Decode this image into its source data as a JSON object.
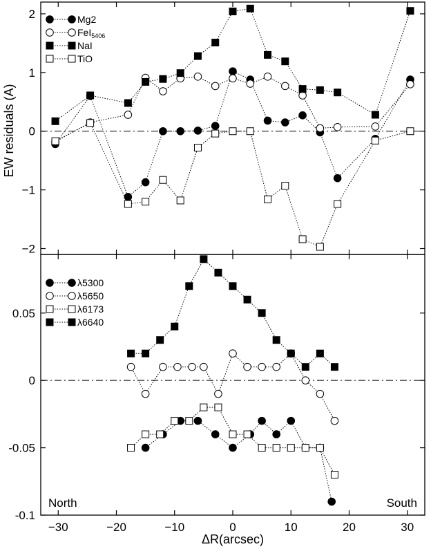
{
  "chart_data": [
    {
      "type": "line",
      "panel": "top",
      "ylabel": "EW residuals (A)",
      "xlim": [
        -33,
        33
      ],
      "ylim": [
        -2.1,
        2.2
      ],
      "yticks": [
        -2,
        -1,
        0,
        1,
        2
      ],
      "ytick_labels": [
        "−2",
        "−1",
        "0",
        "1",
        "2"
      ],
      "xticks": [
        -30,
        -20,
        -10,
        0,
        10,
        20,
        30
      ],
      "reference_line_y": 0,
      "legend_position": "top-left",
      "series": [
        {
          "name": "Mg2",
          "marker": "filled-circle",
          "x": [
            -30.5,
            -24.5,
            -18,
            -15,
            -12,
            -9,
            -6,
            -3,
            0,
            3,
            6,
            9,
            12,
            15,
            18,
            24.5,
            30.5
          ],
          "y": [
            -0.22,
            0.6,
            -1.12,
            -0.87,
            0,
            0,
            0.01,
            0.09,
            1.02,
            0.88,
            0.18,
            0.15,
            0.27,
            -0.02,
            -0.8,
            -0.13,
            0.88
          ]
        },
        {
          "name": "FeI",
          "name_subscript": "5406",
          "marker": "open-circle",
          "x": [
            -30.5,
            -24.5,
            -18,
            -15,
            -12,
            -9,
            -6,
            -3,
            0,
            3,
            6,
            9,
            12,
            15,
            18,
            24.5,
            30.5
          ],
          "y": [
            -0.18,
            0.15,
            0.28,
            0.91,
            0.68,
            0.9,
            0.93,
            0.77,
            0.9,
            0.81,
            0.93,
            0.77,
            0.61,
            0.05,
            0.07,
            0.08,
            0.8
          ]
        },
        {
          "name": "NaI",
          "marker": "filled-square",
          "x": [
            -30.5,
            -24.5,
            -18,
            -15,
            -12,
            -9,
            -6,
            -3,
            0,
            3,
            6,
            9,
            12,
            15,
            18,
            24.5,
            30.5
          ],
          "y": [
            0.17,
            0.61,
            0.48,
            0.84,
            0.89,
            0.99,
            1.28,
            1.51,
            2.04,
            2.09,
            1.3,
            1.19,
            0.72,
            0.7,
            0.66,
            0.28,
            2.05
          ]
        },
        {
          "name": "TiO",
          "marker": "open-square",
          "x": [
            -30.5,
            -24.5,
            -18,
            -15,
            -12,
            -9,
            -6,
            -3,
            0,
            3,
            6,
            9,
            12,
            15,
            18,
            24.5,
            30.5
          ],
          "y": [
            -0.17,
            0.14,
            -1.24,
            -1.2,
            -0.83,
            -1.18,
            -0.28,
            -0.04,
            0,
            0,
            -1.16,
            -0.93,
            -1.84,
            -1.97,
            -1.24,
            -0.16,
            0
          ]
        }
      ]
    },
    {
      "type": "line",
      "panel": "bottom",
      "xlabel": "ΔR(arcsec)",
      "xlim": [
        -33,
        33
      ],
      "ylim": [
        -0.1,
        0.0935
      ],
      "yticks": [
        -0.1,
        -0.05,
        0,
        0.05
      ],
      "ytick_labels": [
        "-0.1",
        "-0.05",
        "0",
        "0.05"
      ],
      "xticks": [
        -30,
        -20,
        -10,
        0,
        10,
        20,
        30
      ],
      "xtick_labels": [
        "−30",
        "−20",
        "−10",
        "0",
        "10",
        "20",
        "30"
      ],
      "reference_line_y": 0,
      "legend_position": "top-left",
      "series": [
        {
          "name": "λ5300",
          "marker": "filled-circle",
          "x": [
            -15,
            -12,
            -9,
            -6,
            -3,
            0,
            3,
            5,
            7.5,
            10,
            12.5,
            15,
            17
          ],
          "y": [
            -0.05,
            -0.04,
            -0.03,
            -0.03,
            -0.04,
            -0.05,
            -0.04,
            -0.03,
            -0.04,
            -0.03,
            -0.05,
            -0.05,
            -0.09
          ]
        },
        {
          "name": "λ5650",
          "marker": "open-circle",
          "x": [
            -17.5,
            -15,
            -12,
            -9.5,
            -7,
            -5,
            -2.5,
            0,
            2.5,
            5,
            7.5,
            10,
            12.5,
            15,
            17.5
          ],
          "y": [
            0.01,
            -0.01,
            0.01,
            0.01,
            0.01,
            0.01,
            -0.01,
            0.02,
            0.01,
            0.01,
            0.01,
            0.02,
            0,
            -0.01,
            -0.03
          ]
        },
        {
          "name": "λ6173",
          "marker": "open-square",
          "x": [
            -17.5,
            -15,
            -12.5,
            -10,
            -7.5,
            -5,
            -2.5,
            0,
            2.5,
            5,
            7.5,
            10,
            12.5,
            15,
            17.5
          ],
          "y": [
            -0.05,
            -0.04,
            -0.04,
            -0.03,
            -0.03,
            -0.02,
            -0.02,
            -0.04,
            -0.04,
            -0.05,
            -0.05,
            -0.05,
            -0.05,
            -0.05,
            -0.07
          ]
        },
        {
          "name": "λ6640",
          "marker": "filled-square",
          "x": [
            -17.5,
            -15,
            -12.5,
            -10,
            -7.5,
            -5,
            -2.5,
            0,
            2.5,
            5,
            7.5,
            10,
            12.5,
            15,
            17.5
          ],
          "y": [
            0.02,
            0.02,
            0.03,
            0.04,
            0.07,
            0.09,
            0.08,
            0.07,
            0.06,
            0.05,
            0.03,
            0.02,
            0.01,
            0.02,
            0.01
          ]
        }
      ]
    }
  ],
  "annotations": {
    "left": "North",
    "right": "South"
  }
}
